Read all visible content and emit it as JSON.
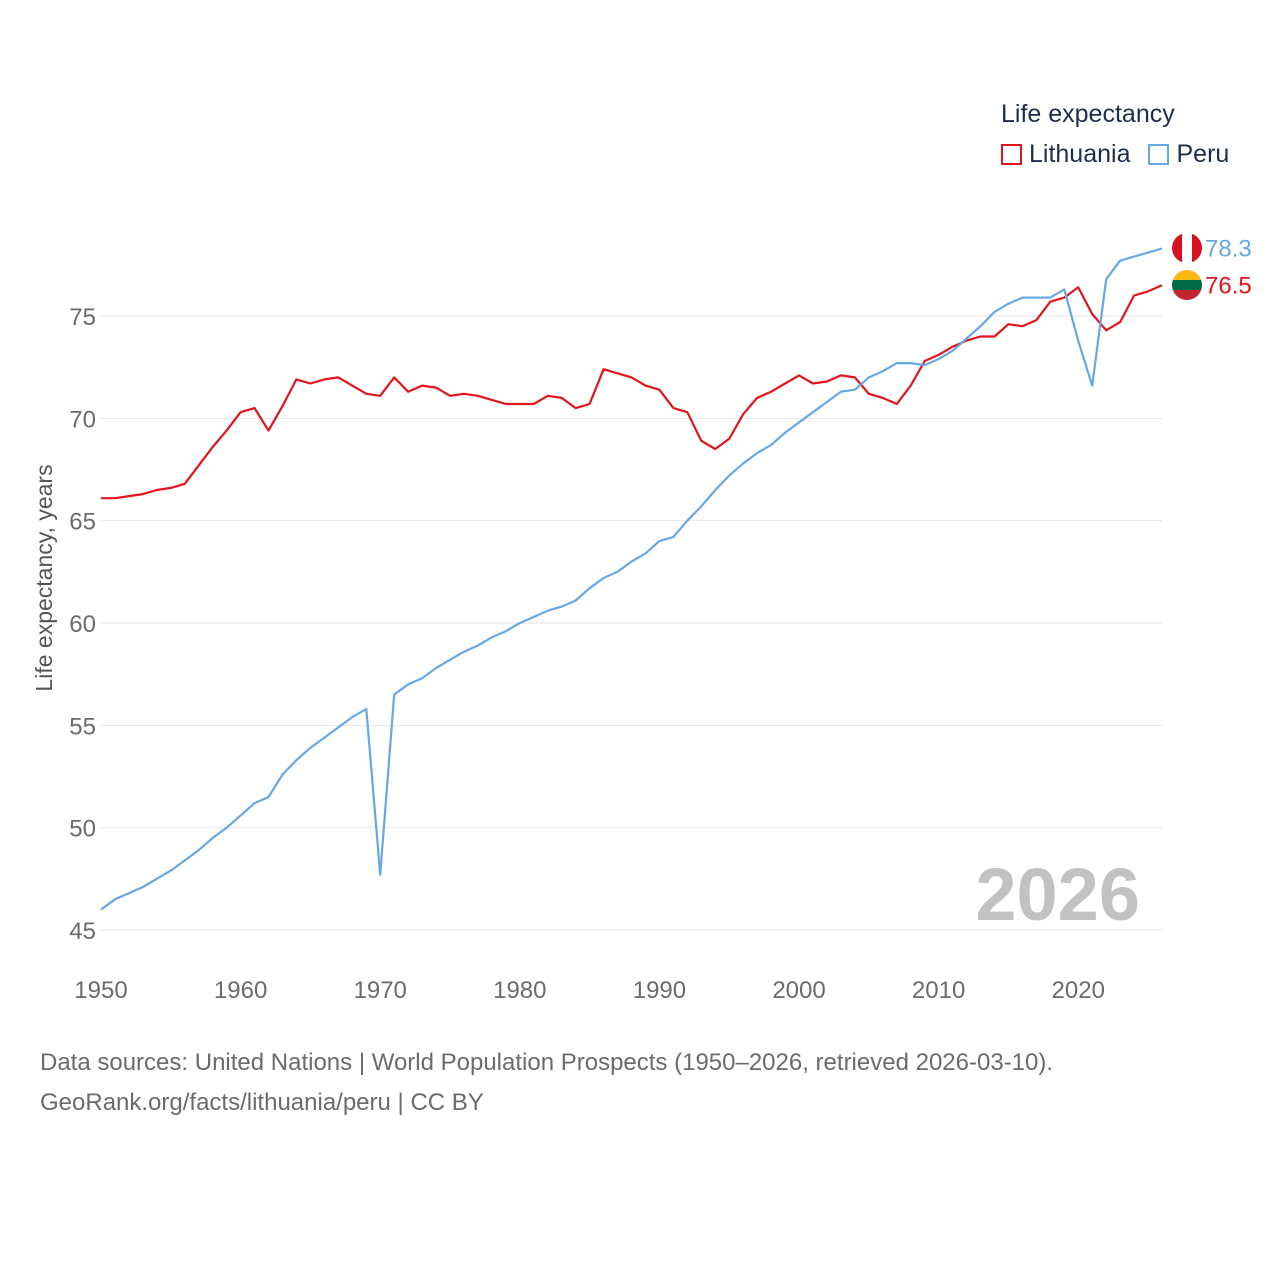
{
  "legend": {
    "title": "Life expectancy",
    "items": [
      {
        "label": "Lithuania",
        "color": "#e3141b"
      },
      {
        "label": "Peru",
        "color": "#66a8e6"
      }
    ]
  },
  "footer": {
    "line1": "Data sources: United Nations | World Population Prospects (1950–2026, retrieved 2026-03-10).",
    "line2": "GeoRank.org/facts/lithuania/peru | CC BY"
  },
  "chart_data": {
    "type": "line",
    "title": "Life expectancy",
    "xlabel": "",
    "ylabel": "Life expectancy, years",
    "xlim": [
      1950,
      2026
    ],
    "ylim": [
      45,
      79
    ],
    "x_ticks": [
      1950,
      1960,
      1970,
      1980,
      1990,
      2000,
      2010,
      2020
    ],
    "y_ticks": [
      45,
      50,
      55,
      60,
      65,
      70,
      75
    ],
    "grid": true,
    "year_label": "2026",
    "x": [
      1950,
      1951,
      1952,
      1953,
      1954,
      1955,
      1956,
      1957,
      1958,
      1959,
      1960,
      1961,
      1962,
      1963,
      1964,
      1965,
      1966,
      1967,
      1968,
      1969,
      1970,
      1971,
      1972,
      1973,
      1974,
      1975,
      1976,
      1977,
      1978,
      1979,
      1980,
      1981,
      1982,
      1983,
      1984,
      1985,
      1986,
      1987,
      1988,
      1989,
      1990,
      1991,
      1992,
      1993,
      1994,
      1995,
      1996,
      1997,
      1998,
      1999,
      2000,
      2001,
      2002,
      2003,
      2004,
      2005,
      2006,
      2007,
      2008,
      2009,
      2010,
      2011,
      2012,
      2013,
      2014,
      2015,
      2016,
      2017,
      2018,
      2019,
      2020,
      2021,
      2022,
      2023,
      2024,
      2025,
      2026
    ],
    "series": [
      {
        "name": "Lithuania",
        "color": "#e3141b",
        "end_label": "76.5",
        "values": [
          66.1,
          66.1,
          66.2,
          66.3,
          66.5,
          66.6,
          66.8,
          67.7,
          68.6,
          69.4,
          70.3,
          70.5,
          69.4,
          70.6,
          71.9,
          71.7,
          71.9,
          72.0,
          71.6,
          71.2,
          71.1,
          72.0,
          71.3,
          71.6,
          71.5,
          71.1,
          71.2,
          71.1,
          70.9,
          70.7,
          70.7,
          70.7,
          71.1,
          71.0,
          70.5,
          70.7,
          72.4,
          72.2,
          72.0,
          71.6,
          71.4,
          70.5,
          70.3,
          68.9,
          68.5,
          69.0,
          70.2,
          71.0,
          71.3,
          71.7,
          72.1,
          71.7,
          71.8,
          72.1,
          72.0,
          71.2,
          71.0,
          70.7,
          71.6,
          72.8,
          73.1,
          73.5,
          73.8,
          74.0,
          74.0,
          74.6,
          74.5,
          74.8,
          75.7,
          75.9,
          76.4,
          75.1,
          74.3,
          74.7,
          76.0,
          76.2,
          76.5
        ]
      },
      {
        "name": "Peru",
        "color": "#66a8e6",
        "end_label": "78.3",
        "values": [
          46.0,
          46.5,
          46.8,
          47.1,
          47.5,
          47.9,
          48.4,
          48.9,
          49.5,
          50.0,
          50.6,
          51.2,
          51.5,
          52.6,
          53.3,
          53.9,
          54.4,
          54.9,
          55.4,
          55.8,
          47.7,
          56.5,
          57.0,
          57.3,
          57.8,
          58.2,
          58.6,
          58.9,
          59.3,
          59.6,
          60.0,
          60.3,
          60.6,
          60.8,
          61.1,
          61.7,
          62.2,
          62.5,
          63.0,
          63.4,
          64.0,
          64.2,
          65.0,
          65.7,
          66.5,
          67.2,
          67.8,
          68.3,
          68.7,
          69.3,
          69.8,
          70.3,
          70.8,
          71.3,
          71.4,
          72.0,
          72.3,
          72.7,
          72.7,
          72.6,
          72.9,
          73.3,
          73.9,
          74.5,
          75.2,
          75.6,
          75.9,
          75.9,
          75.9,
          76.3,
          73.8,
          71.6,
          76.8,
          77.7,
          77.9,
          78.1,
          78.3
        ]
      }
    ]
  }
}
